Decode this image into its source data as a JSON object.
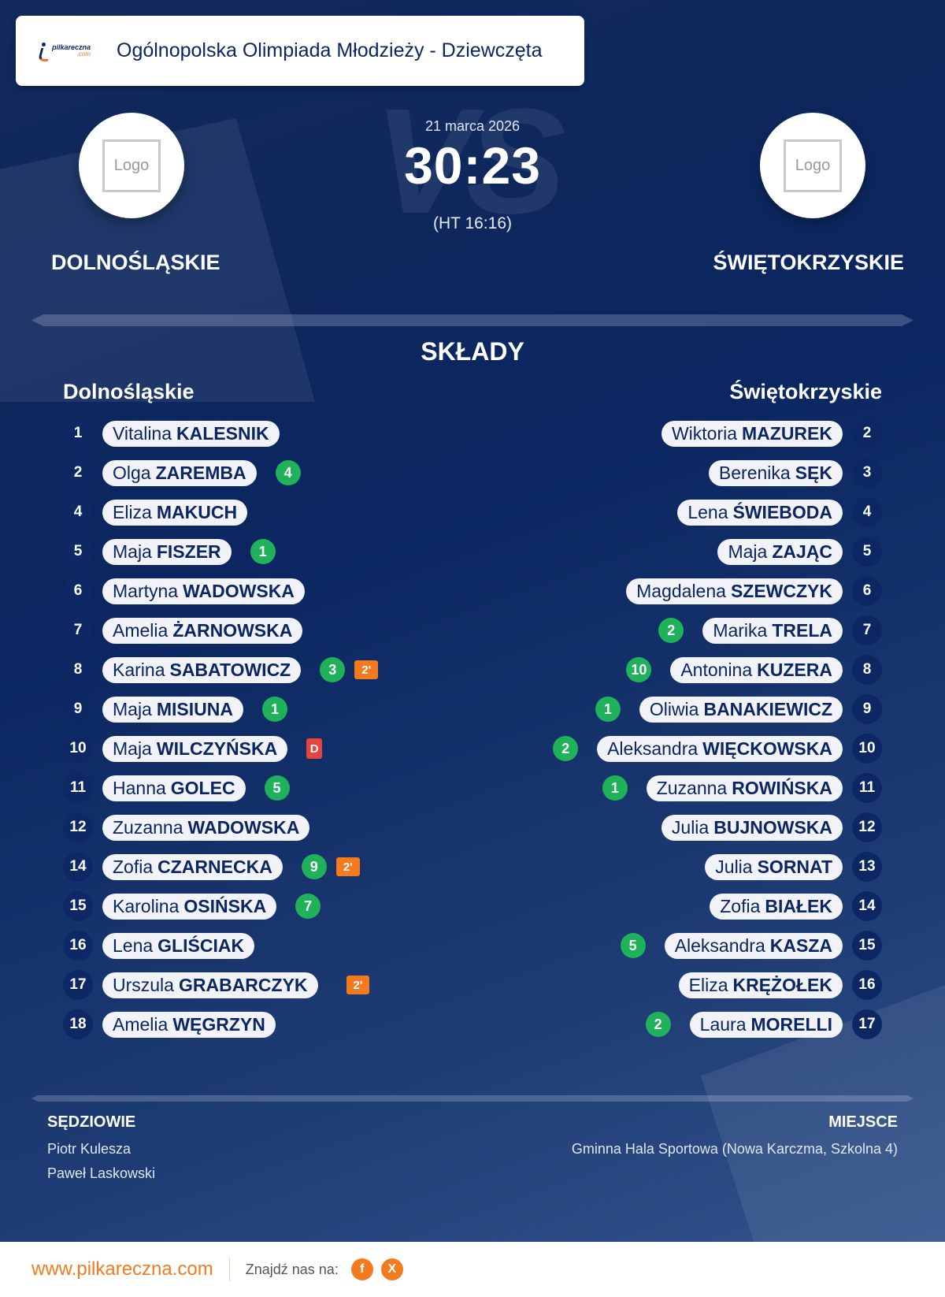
{
  "header": {
    "brand_top": "pilkareczna",
    "brand_bottom": ".com",
    "title": "Ogólnopolska Olimpiada Młodzieży - Dziewczęta"
  },
  "match": {
    "date": "21 marca 2026",
    "score": "30:23",
    "halftime": "(HT 16:16)",
    "watermark": "VS",
    "home": {
      "name": "DOLNOŚLĄSKIE",
      "logo_text": "Logo"
    },
    "away": {
      "name": "ŚWIĘTOKRZYSKIE",
      "logo_text": "Logo"
    }
  },
  "lineups": {
    "title": "SKŁADY",
    "home_title": "Dolnośląskie",
    "away_title": "Świętokrzyskie",
    "home": [
      {
        "number": "1",
        "first": "Vitalina",
        "last": "KALESNIK",
        "goals": null,
        "suspension": null,
        "dq": null
      },
      {
        "number": "2",
        "first": "Olga",
        "last": "ZAREMBA",
        "goals": "4",
        "suspension": null,
        "dq": null
      },
      {
        "number": "4",
        "first": "Eliza",
        "last": "MAKUCH",
        "goals": null,
        "suspension": null,
        "dq": null
      },
      {
        "number": "5",
        "first": "Maja",
        "last": "FISZER",
        "goals": "1",
        "suspension": null,
        "dq": null
      },
      {
        "number": "6",
        "first": "Martyna",
        "last": "WADOWSKA",
        "goals": null,
        "suspension": null,
        "dq": null
      },
      {
        "number": "7",
        "first": "Amelia",
        "last": "ŻARNOWSKA",
        "goals": null,
        "suspension": null,
        "dq": null
      },
      {
        "number": "8",
        "first": "Karina",
        "last": "SABATOWICZ",
        "goals": "3",
        "suspension": "2'",
        "dq": null
      },
      {
        "number": "9",
        "first": "Maja",
        "last": "MISIUNA",
        "goals": "1",
        "suspension": null,
        "dq": null
      },
      {
        "number": "10",
        "first": "Maja",
        "last": "WILCZYŃSKA",
        "goals": null,
        "suspension": null,
        "dq": "D"
      },
      {
        "number": "11",
        "first": "Hanna",
        "last": "GOLEC",
        "goals": "5",
        "suspension": null,
        "dq": null
      },
      {
        "number": "12",
        "first": "Zuzanna",
        "last": "WADOWSKA",
        "goals": null,
        "suspension": null,
        "dq": null
      },
      {
        "number": "14",
        "first": "Zofia",
        "last": "CZARNECKA",
        "goals": "9",
        "suspension": "2'",
        "dq": null
      },
      {
        "number": "15",
        "first": "Karolina",
        "last": "OSIŃSKA",
        "goals": "7",
        "suspension": null,
        "dq": null
      },
      {
        "number": "16",
        "first": "Lena",
        "last": "GLIŚCIAK",
        "goals": null,
        "suspension": null,
        "dq": null
      },
      {
        "number": "17",
        "first": "Urszula",
        "last": "GRABARCZYK",
        "goals": null,
        "suspension": "2'",
        "dq": null
      },
      {
        "number": "18",
        "first": "Amelia",
        "last": "WĘGRZYN",
        "goals": null,
        "suspension": null,
        "dq": null
      }
    ],
    "away": [
      {
        "number": "2",
        "first": "Wiktoria",
        "last": "MAZUREK",
        "goals": null
      },
      {
        "number": "3",
        "first": "Berenika",
        "last": "SĘK",
        "goals": null
      },
      {
        "number": "4",
        "first": "Lena",
        "last": "ŚWIEBODA",
        "goals": null
      },
      {
        "number": "5",
        "first": "Maja",
        "last": "ZAJĄC",
        "goals": null
      },
      {
        "number": "6",
        "first": "Magdalena",
        "last": "SZEWCZYK",
        "goals": null
      },
      {
        "number": "7",
        "first": "Marika",
        "last": "TRELA",
        "goals": "2"
      },
      {
        "number": "8",
        "first": "Antonina",
        "last": "KUZERA",
        "goals": "10"
      },
      {
        "number": "9",
        "first": "Oliwia",
        "last": "BANAKIEWICZ",
        "goals": "1"
      },
      {
        "number": "10",
        "first": "Aleksandra",
        "last": "WIĘCKOWSKA",
        "goals": "2"
      },
      {
        "number": "11",
        "first": "Zuzanna",
        "last": "ROWIŃSKA",
        "goals": "1"
      },
      {
        "number": "12",
        "first": "Julia",
        "last": "BUJNOWSKA",
        "goals": null
      },
      {
        "number": "13",
        "first": "Julia",
        "last": "SORNAT",
        "goals": null
      },
      {
        "number": "14",
        "first": "Zofia",
        "last": "BIAŁEK",
        "goals": null
      },
      {
        "number": "15",
        "first": "Aleksandra",
        "last": "KASZA",
        "goals": "5"
      },
      {
        "number": "16",
        "first": "Eliza",
        "last": "KRĘŻOŁEK",
        "goals": null
      },
      {
        "number": "17",
        "first": "Laura",
        "last": "MORELLI",
        "goals": "2"
      }
    ]
  },
  "officials": {
    "title": "SĘDZIOWIE",
    "names": [
      "Piotr Kulesza",
      "Paweł Laskowski"
    ]
  },
  "venue": {
    "title": "MIEJSCE",
    "name": "Gminna Hala Sportowa (Nowa Karczma, Szkolna 4)"
  },
  "footer": {
    "site": "www.pilkareczna.com",
    "find_us": "Znajdź nas na:",
    "social": [
      {
        "icon": "facebook-icon",
        "glyph": "f"
      },
      {
        "icon": "x-icon",
        "glyph": "X"
      }
    ]
  },
  "colors": {
    "navy": "#0b2660",
    "goal_green": "#1fb25a",
    "suspension_orange": "#f47a1f",
    "disqualification_red": "#e9433f",
    "brand_orange": "#f47a1f"
  }
}
